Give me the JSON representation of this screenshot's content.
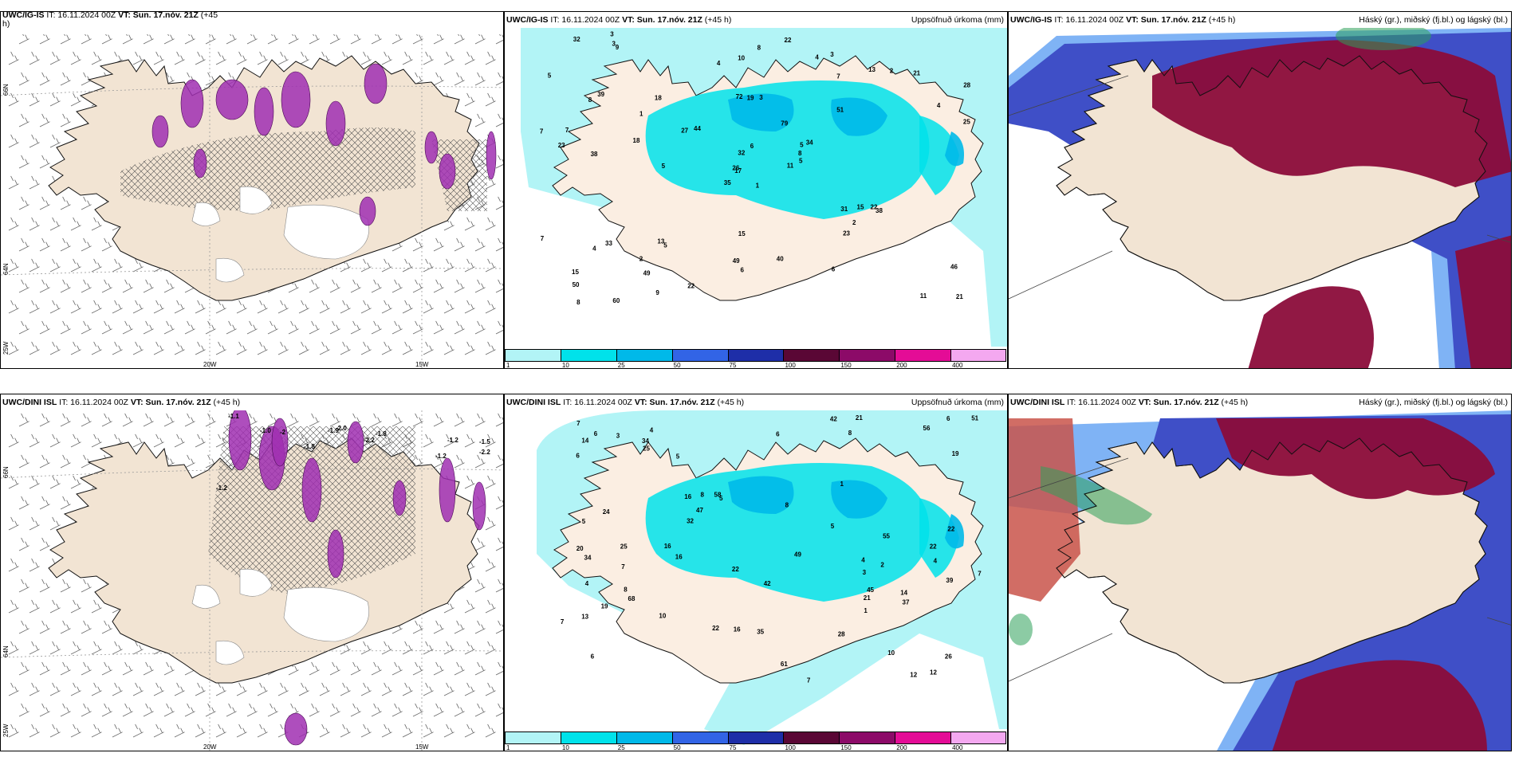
{
  "colors": {
    "land": "#f2e4d3",
    "sea_precip_low": "#b2f4f6",
    "precip_colors": [
      "#b2f4f6",
      "#00e2ea",
      "#00b9e9",
      "#3264e6",
      "#1e2ea8",
      "#5a0735",
      "#8c0a68",
      "#e40c96",
      "#f4a8f0"
    ],
    "purple": "#a02fb2",
    "cloud_high": "#8b0c3a",
    "cloud_mid": "#3f4fc7",
    "cloud_low": "#2ea05a"
  },
  "colorbar": {
    "ticks": [
      "1",
      "10",
      "25",
      "50",
      "75",
      "100",
      "150",
      "200",
      "400"
    ]
  },
  "panels": {
    "r1c1": {
      "title_bold": "UWC/IG-IS",
      "title_rest": " IT: 16.11.2024 00Z ",
      "vt_bold": "VT: Sun. 17.nóv. 21Z",
      "lead": " (+45",
      "lead_wrap": "h)",
      "lat_labels": [
        "66N",
        "64N",
        "25W"
      ],
      "lon_labels": [
        "20W",
        "15W"
      ]
    },
    "r1c2": {
      "title_bold": "UWC/IG-IS",
      "title_rest": " IT: 16.11.2024 00Z ",
      "vt_bold": "VT: Sun. 17.nóv. 21Z",
      "lead": " (+45 h)",
      "right": "Uppsöfnuð úrkoma (mm)",
      "values": [
        "1",
        "8",
        "17",
        "15",
        "5",
        "5",
        "3",
        "3",
        "7",
        "11",
        "9",
        "21",
        "38",
        "28",
        "35",
        "51",
        "60",
        "72",
        "79",
        "33",
        "44",
        "50",
        "49",
        "19",
        "34",
        "38",
        "39",
        "10",
        "23",
        "31",
        "25",
        "26",
        "49",
        "32",
        "18",
        "13",
        "13",
        "11",
        "46",
        "22",
        "22",
        "27",
        "18",
        "23",
        "9",
        "7",
        "8",
        "8",
        "6",
        "5",
        "4",
        "4",
        "5",
        "2",
        "6",
        "2",
        "3",
        "32",
        "40",
        "21",
        "8",
        "5",
        "7",
        "1",
        "2",
        "3",
        "4",
        "4",
        "6",
        "7",
        "15",
        "22",
        "15"
      ]
    },
    "r1c3": {
      "title_bold": "UWC/IG-IS",
      "title_rest": " IT: 16.11.2024 00Z ",
      "vt_bold": "VT: Sun. 17.nóv. 21Z",
      "lead": " (+45 h)",
      "right": "Háský (gr.), miðský (fj.bl.) og lágský (bl.)"
    },
    "r2c1": {
      "title_bold": "UWC/DINI ISL",
      "title_rest": " IT: 16.11.2024 00Z ",
      "vt_bold": "VT: Sun. 17.nóv. 21Z",
      "lead": " (+45 h)",
      "lat_labels": [
        "66N",
        "64N",
        "25W"
      ],
      "lon_labels": [
        "20W",
        "15W"
      ],
      "values": [
        "-1.1",
        "-1.0",
        "-2",
        "-1.2",
        "-2.0",
        "-2.2",
        "-1.9",
        "-1.8",
        "-1.2",
        "-1.5",
        "-1.2",
        "-2.2",
        "-1.8"
      ]
    },
    "r2c2": {
      "title_bold": "UWC/DINI ISL",
      "title_rest": " IT: 16.11.2024 00Z ",
      "vt_bold": "VT: Sun. 17.nóv. 21Z",
      "lead": " (+45 h)",
      "right": "Uppsöfnuð úrkoma (mm)",
      "values": [
        "3",
        "4",
        "6",
        "4",
        "5",
        "10",
        "13",
        "8",
        "16",
        "7",
        "6",
        "20",
        "14",
        "26",
        "22",
        "22",
        "42",
        "49",
        "58",
        "68",
        "51",
        "56",
        "32",
        "39",
        "42",
        "34",
        "45",
        "34",
        "25",
        "55",
        "61",
        "28",
        "47",
        "16",
        "22",
        "37",
        "21",
        "25",
        "35",
        "19",
        "19",
        "21",
        "12",
        "16",
        "14",
        "10",
        "7",
        "6",
        "5",
        "5",
        "7",
        "8",
        "6",
        "4",
        "1",
        "12",
        "1",
        "7",
        "7",
        "3",
        "2",
        "5",
        "8",
        "4",
        "6",
        "24",
        "22",
        "8",
        "16"
      ]
    },
    "r2c3": {
      "title_bold": "UWC/DINI ISL",
      "title_rest": " IT: 16.11.2024 00Z ",
      "vt_bold": "VT: Sun. 17.nóv. 21Z",
      "lead": " (+45 h)",
      "right": "Háský (gr.), miðský (fj.bl.) og lágský (bl.)"
    }
  }
}
